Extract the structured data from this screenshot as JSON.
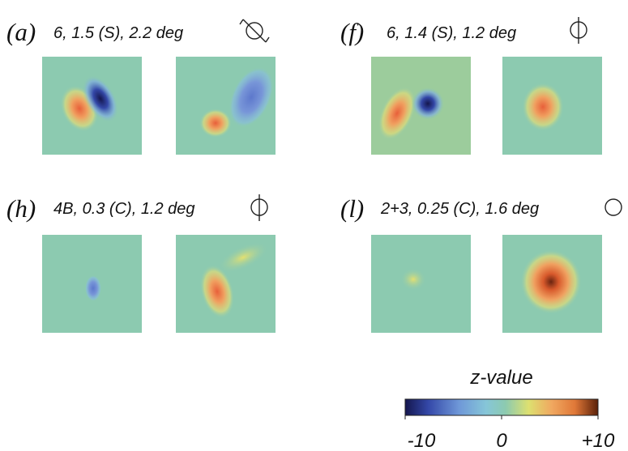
{
  "panels": [
    {
      "label": "(a)",
      "description": "6, 1.5 (S), 2.2 deg"
    },
    {
      "label": "(f)",
      "description": "6, 1.4 (S), 1.2 deg"
    },
    {
      "label": "(h)",
      "description": "4B, 0.3 (C), 1.2 deg"
    },
    {
      "label": "(l)",
      "description": "2+3, 0.25 (C), 1.6 deg"
    }
  ],
  "colorbar": {
    "title": "z-value",
    "lim": [
      -10,
      10
    ],
    "ticks": [
      -10,
      0,
      {
        "value": 10,
        "label": "+10"
      }
    ]
  }
}
